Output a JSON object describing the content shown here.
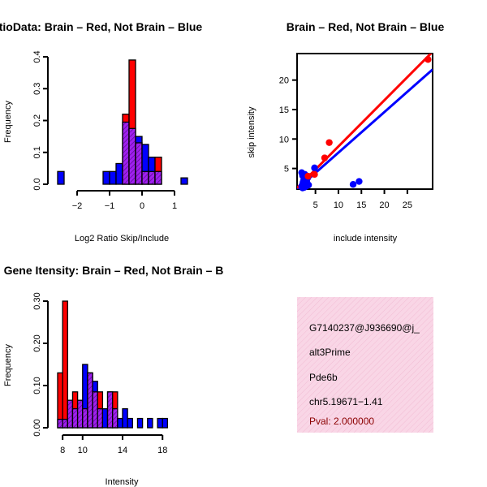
{
  "colors": {
    "red": "#ff0000",
    "blue": "#0000ff",
    "overlap": "#a020f0",
    "info_bg": "#f9d6e6",
    "pval": "#8b0000"
  },
  "chart_data": [
    {
      "type": "bar",
      "title": "RatioData: Brain – Red, Not Brain – Blue",
      "xlabel": "Log2 Ratio Skip/Include",
      "ylabel": "Frequency",
      "xlim": [
        -2.6,
        1.4
      ],
      "ylim": [
        0,
        0.4
      ],
      "xticks": [
        -2,
        -1,
        0,
        1
      ],
      "xtick_labels": [
        "−2",
        "−1",
        "0",
        "1"
      ],
      "yticks": [
        0.0,
        0.1,
        0.2,
        0.3,
        0.4
      ],
      "ytick_labels": [
        "0.0",
        "0.1",
        "0.2",
        "0.3",
        "0.4"
      ],
      "bin_edges": [
        -2.6,
        -2.4,
        -2.2,
        -2.0,
        -1.8,
        -1.6,
        -1.4,
        -1.2,
        -1.0,
        -0.8,
        -0.6,
        -0.4,
        -0.2,
        0.0,
        0.2,
        0.4,
        0.6,
        0.8,
        1.0,
        1.2,
        1.4
      ],
      "series": [
        {
          "name": "Brain",
          "color": "red",
          "values": [
            0,
            0,
            0,
            0,
            0,
            0,
            0,
            0,
            0,
            0,
            0.22,
            0.39,
            0.13,
            0.04,
            0.04,
            0.085,
            0,
            0,
            0,
            0
          ]
        },
        {
          "name": "Not Brain",
          "color": "blue",
          "values": [
            0.04,
            0,
            0,
            0,
            0,
            0,
            0,
            0.04,
            0.04,
            0.065,
            0.195,
            0.175,
            0.15,
            0.125,
            0.085,
            0.04,
            0,
            0,
            0,
            0.02
          ]
        }
      ]
    },
    {
      "type": "scatter",
      "title": "Brain – Red, Not Brain – Blue",
      "xlabel": "include intensity",
      "ylabel": "skip intensity",
      "xlim": [
        1.0,
        30.5
      ],
      "ylim": [
        1.5,
        24.5
      ],
      "xticks": [
        5,
        10,
        15,
        20,
        25
      ],
      "yticks": [
        5,
        10,
        15,
        20
      ],
      "series": [
        {
          "name": "Brain",
          "color": "red",
          "x": [
            7.0,
            8.0,
            29.5,
            3.4,
            4.8
          ],
          "y": [
            6.8,
            9.4,
            23.5,
            3.7,
            4.0
          ],
          "fit": {
            "x": [
              1.0,
              30.5
            ],
            "y": [
              1.7,
              24.8
            ]
          }
        },
        {
          "name": "Not Brain",
          "color": "blue",
          "x": [
            2.0,
            2.2,
            2.5,
            2.8,
            3.0,
            2.4,
            2.6,
            2.1,
            2.9,
            3.2,
            2.3,
            2.7,
            3.5,
            2.2,
            2.8,
            3.1,
            4.8,
            13.2,
            14.5,
            2.5,
            3.3,
            2.0
          ],
          "y": [
            4.3,
            3.8,
            3.2,
            2.5,
            2.0,
            2.9,
            1.8,
            2.1,
            3.6,
            2.4,
            2.6,
            4.0,
            2.2,
            1.7,
            3.0,
            2.8,
            5.1,
            2.3,
            2.8,
            2.2,
            3.4,
            2.0
          ],
          "fit": {
            "x": [
              1.0,
              30.5
            ],
            "y": [
              1.5,
              21.8
            ]
          }
        }
      ]
    },
    {
      "type": "bar",
      "title": "Gene Itensity: Brain – Red, Not Brain – B",
      "xlabel": "Intensity",
      "ylabel": "Frequency",
      "xlim": [
        7.5,
        20.5
      ],
      "ylim": [
        0,
        0.3
      ],
      "xticks": [
        8,
        10,
        14,
        18
      ],
      "yticks": [
        0.0,
        0.1,
        0.2,
        0.3
      ],
      "ytick_labels": [
        "0.00",
        "0.10",
        "0.20",
        "0.30"
      ],
      "bin_edges": [
        7.5,
        8.0,
        8.5,
        9.0,
        9.5,
        10.0,
        10.5,
        11.0,
        11.5,
        12.0,
        12.5,
        13.0,
        13.5,
        14.0,
        14.5,
        15.0,
        15.5,
        16.0,
        16.5,
        17.0,
        17.5,
        18.0,
        18.5,
        19.0,
        19.5,
        20.0,
        20.5
      ],
      "series": [
        {
          "name": "Brain",
          "color": "red",
          "values": [
            0.13,
            0.3,
            0.065,
            0.085,
            0.065,
            0.045,
            0.13,
            0.085,
            0.085,
            0,
            0.085,
            0.085,
            0,
            0,
            0,
            0,
            0,
            0,
            0,
            0,
            0,
            0,
            0,
            0,
            0,
            0
          ]
        },
        {
          "name": "Not Brain",
          "color": "blue",
          "values": [
            0.02,
            0.02,
            0.065,
            0.045,
            0.065,
            0.15,
            0.13,
            0.11,
            0.045,
            0.045,
            0.085,
            0.045,
            0.022,
            0.045,
            0.022,
            0,
            0.022,
            0,
            0.022,
            0,
            0.022,
            0.022,
            0,
            0,
            0,
            0
          ]
        }
      ]
    }
  ],
  "info": {
    "event_id": "G7140237@J936690@j_",
    "event_type": "alt3Prime",
    "gene": "Pde6b",
    "location": "chr5.19671−1.41",
    "pval": "Pval: 2.000000"
  }
}
